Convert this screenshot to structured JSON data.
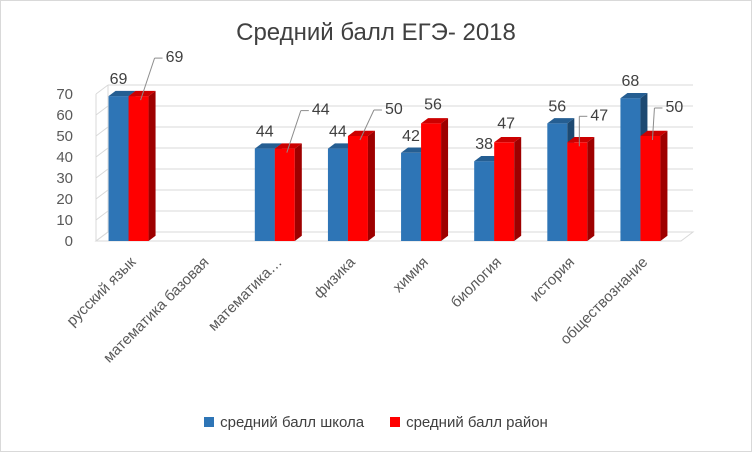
{
  "chart_data": {
    "type": "bar",
    "title": "Средний балл ЕГЭ- 2018",
    "categories": [
      "русский язык",
      "математика базовая",
      "математика…",
      "физика",
      "химия",
      "биология",
      "история",
      "обществознание"
    ],
    "series": [
      {
        "name": "средний балл школа",
        "color": "#2e75b6",
        "values": [
          69,
          null,
          44,
          44,
          42,
          38,
          56,
          68
        ]
      },
      {
        "name": "средний балл район",
        "color": "#ff0000",
        "values": [
          69,
          null,
          44,
          50,
          56,
          47,
          47,
          50
        ]
      }
    ],
    "ylim": [
      0,
      70
    ],
    "yticks": [
      0,
      10,
      20,
      30,
      40,
      50,
      60,
      70
    ],
    "grid": true,
    "legend_position": "bottom",
    "style": "3d-clustered-column"
  }
}
